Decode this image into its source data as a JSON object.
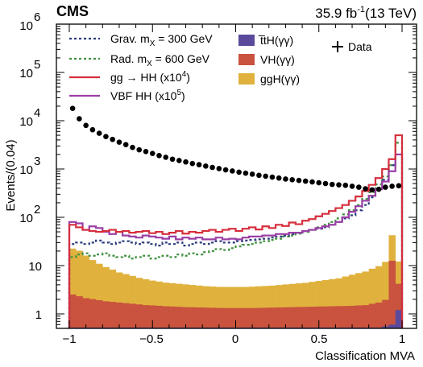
{
  "header": {
    "experiment": "CMS",
    "lumi_value": "35.9 fb",
    "lumi_exp": "-1",
    "lumi_energy": "(13 TeV)"
  },
  "axes": {
    "ylabel": "Events/(0.04)",
    "xlabel": "Classification MVA",
    "y_ticks": [
      {
        "base": "1",
        "exp": ""
      },
      {
        "base": "10",
        "exp": ""
      },
      {
        "base": "10",
        "exp": "2"
      },
      {
        "base": "10",
        "exp": "3"
      },
      {
        "base": "10",
        "exp": "4"
      },
      {
        "base": "10",
        "exp": "5"
      },
      {
        "base": "10",
        "exp": "6"
      }
    ],
    "x_ticks": [
      "−1",
      "−0.5",
      "0",
      "0.5",
      "1"
    ]
  },
  "legend": {
    "grav": {
      "pre": "Grav. m",
      "sub": "X",
      "post": " = 300 GeV"
    },
    "rad": {
      "pre": "Rad. m",
      "sub": "X",
      "post": " = 600 GeV"
    },
    "gghh": {
      "pre": "gg → HH (x10",
      "sup": "4",
      "post": ")"
    },
    "vbfhh": {
      "pre": "VBF HH (x10",
      "sup": "5",
      "post": ")"
    },
    "tth": "t̅tH(γγ)",
    "vh": "VH(γγ)",
    "ggh": "ggH(γγ)",
    "data": "Data"
  },
  "chart_data": {
    "type": "histogram",
    "x_range": [
      -1.0,
      1.0
    ],
    "bin_width": 0.04,
    "ylog": true,
    "ylim": [
      0.5,
      1000000
    ],
    "colors": {
      "tth": "#5b4a9c",
      "vh": "#c9533e",
      "ggh": "#e0b23d",
      "gghh": "#d62e3c",
      "vbfhh": "#9b3fa6",
      "grav": "#2a3a7c",
      "rad": "#3e8f3e",
      "data": "#000000"
    },
    "series": [
      {
        "name": "ggH(γγ)",
        "kind": "stacked-fill",
        "values": [
          20,
          18,
          14,
          11,
          9,
          7.5,
          6.5,
          5.5,
          5,
          4.5,
          4,
          3.7,
          3.4,
          3.2,
          3,
          2.9,
          2.8,
          2.7,
          2.6,
          2.5,
          2.4,
          2.35,
          2.3,
          2.3,
          2.3,
          2.3,
          2.3,
          2.35,
          2.4,
          2.45,
          2.5,
          2.6,
          2.7,
          2.8,
          2.9,
          3,
          3.2,
          3.4,
          3.6,
          3.8,
          4,
          4.5,
          5,
          5.5,
          6,
          7,
          8,
          10,
          30,
          8
        ]
      },
      {
        "name": "VH(γγ)",
        "kind": "stacked-fill",
        "values": [
          2,
          1.8,
          1.6,
          1.5,
          1.4,
          1.3,
          1.25,
          1.2,
          1.15,
          1.1,
          1.05,
          1,
          0.98,
          0.95,
          0.92,
          0.9,
          0.88,
          0.86,
          0.85,
          0.84,
          0.83,
          0.82,
          0.81,
          0.8,
          0.8,
          0.8,
          0.8,
          0.8,
          0.81,
          0.82,
          0.83,
          0.84,
          0.85,
          0.86,
          0.87,
          0.88,
          0.89,
          0.9,
          0.91,
          0.92,
          0.93,
          0.94,
          0.95,
          0.98,
          1,
          1.1,
          1.2,
          1.4,
          12,
          3
        ]
      },
      {
        "name": "t̅tH(γγ)",
        "kind": "stacked-fill",
        "values": [
          0.52,
          0.52,
          0.52,
          0.52,
          0.52,
          0.52,
          0.52,
          0.52,
          0.52,
          0.52,
          0.52,
          0.52,
          0.52,
          0.52,
          0.52,
          0.52,
          0.52,
          0.52,
          0.52,
          0.52,
          0.52,
          0.52,
          0.52,
          0.52,
          0.52,
          0.52,
          0.52,
          0.52,
          0.52,
          0.52,
          0.52,
          0.52,
          0.52,
          0.52,
          0.52,
          0.52,
          0.52,
          0.52,
          0.52,
          0.52,
          0.52,
          0.52,
          0.52,
          0.52,
          0.52,
          0.52,
          0.52,
          0.55,
          0.6,
          1.2
        ]
      },
      {
        "name": "gg → HH (x10^4)",
        "kind": "step",
        "values": [
          70,
          62,
          55,
          52,
          50,
          52,
          55,
          50,
          52,
          48,
          50,
          52,
          47,
          50,
          45,
          48,
          52,
          46,
          50,
          48,
          52,
          55,
          50,
          55,
          58,
          52,
          58,
          62,
          56,
          65,
          60,
          70,
          66,
          78,
          72,
          85,
          92,
          105,
          118,
          135,
          155,
          180,
          220,
          270,
          350,
          470,
          650,
          1000,
          1600,
          5000
        ]
      },
      {
        "name": "VBF HH (x10^5)",
        "kind": "step",
        "values": [
          80,
          75,
          55,
          65,
          60,
          50,
          45,
          50,
          42,
          40,
          38,
          42,
          40,
          38,
          36,
          40,
          35,
          38,
          36,
          38,
          35,
          35,
          38,
          35,
          36,
          35,
          38,
          40,
          40,
          42,
          42,
          45,
          45,
          48,
          48,
          52,
          55,
          60,
          65,
          70,
          80,
          100,
          130,
          170,
          220,
          280,
          380,
          550,
          900,
          2000
        ]
      },
      {
        "name": "Grav. m_X = 300 GeV",
        "kind": "step-dashed",
        "values": [
          28,
          30,
          28,
          30,
          33,
          30,
          28,
          30,
          32,
          30,
          28,
          30,
          28,
          26,
          30,
          28,
          30,
          26,
          28,
          30,
          28,
          30,
          32,
          30,
          30,
          32,
          33,
          34,
          35,
          36,
          38,
          40,
          42,
          45,
          48,
          52,
          55,
          58,
          62,
          70,
          80,
          95,
          110,
          140,
          180,
          260,
          380,
          600,
          1200,
          2000
        ]
      },
      {
        "name": "Rad. m_X = 600 GeV",
        "kind": "step-dashed",
        "values": [
          15,
          17,
          18,
          16,
          17,
          18,
          16,
          15,
          16,
          14,
          15,
          16,
          14,
          15,
          16,
          15,
          17,
          16,
          18,
          17,
          19,
          20,
          22,
          21,
          23,
          25,
          27,
          28,
          30,
          32,
          34,
          36,
          40,
          42,
          46,
          50,
          55,
          62,
          70,
          80,
          95,
          115,
          140,
          180,
          240,
          330,
          480,
          700,
          1200,
          3500
        ]
      },
      {
        "name": "Data",
        "kind": "points",
        "values": [
          18000,
          11000,
          8000,
          6500,
          5500,
          4700,
          4100,
          3600,
          3200,
          2800,
          2500,
          2300,
          2100,
          1900,
          1750,
          1600,
          1500,
          1400,
          1300,
          1230,
          1150,
          1080,
          1020,
          960,
          910,
          860,
          820,
          780,
          740,
          710,
          680,
          650,
          620,
          600,
          580,
          560,
          540,
          520,
          500,
          480,
          470,
          460,
          440,
          420,
          390,
          370,
          380,
          420,
          440,
          450
        ]
      }
    ]
  }
}
